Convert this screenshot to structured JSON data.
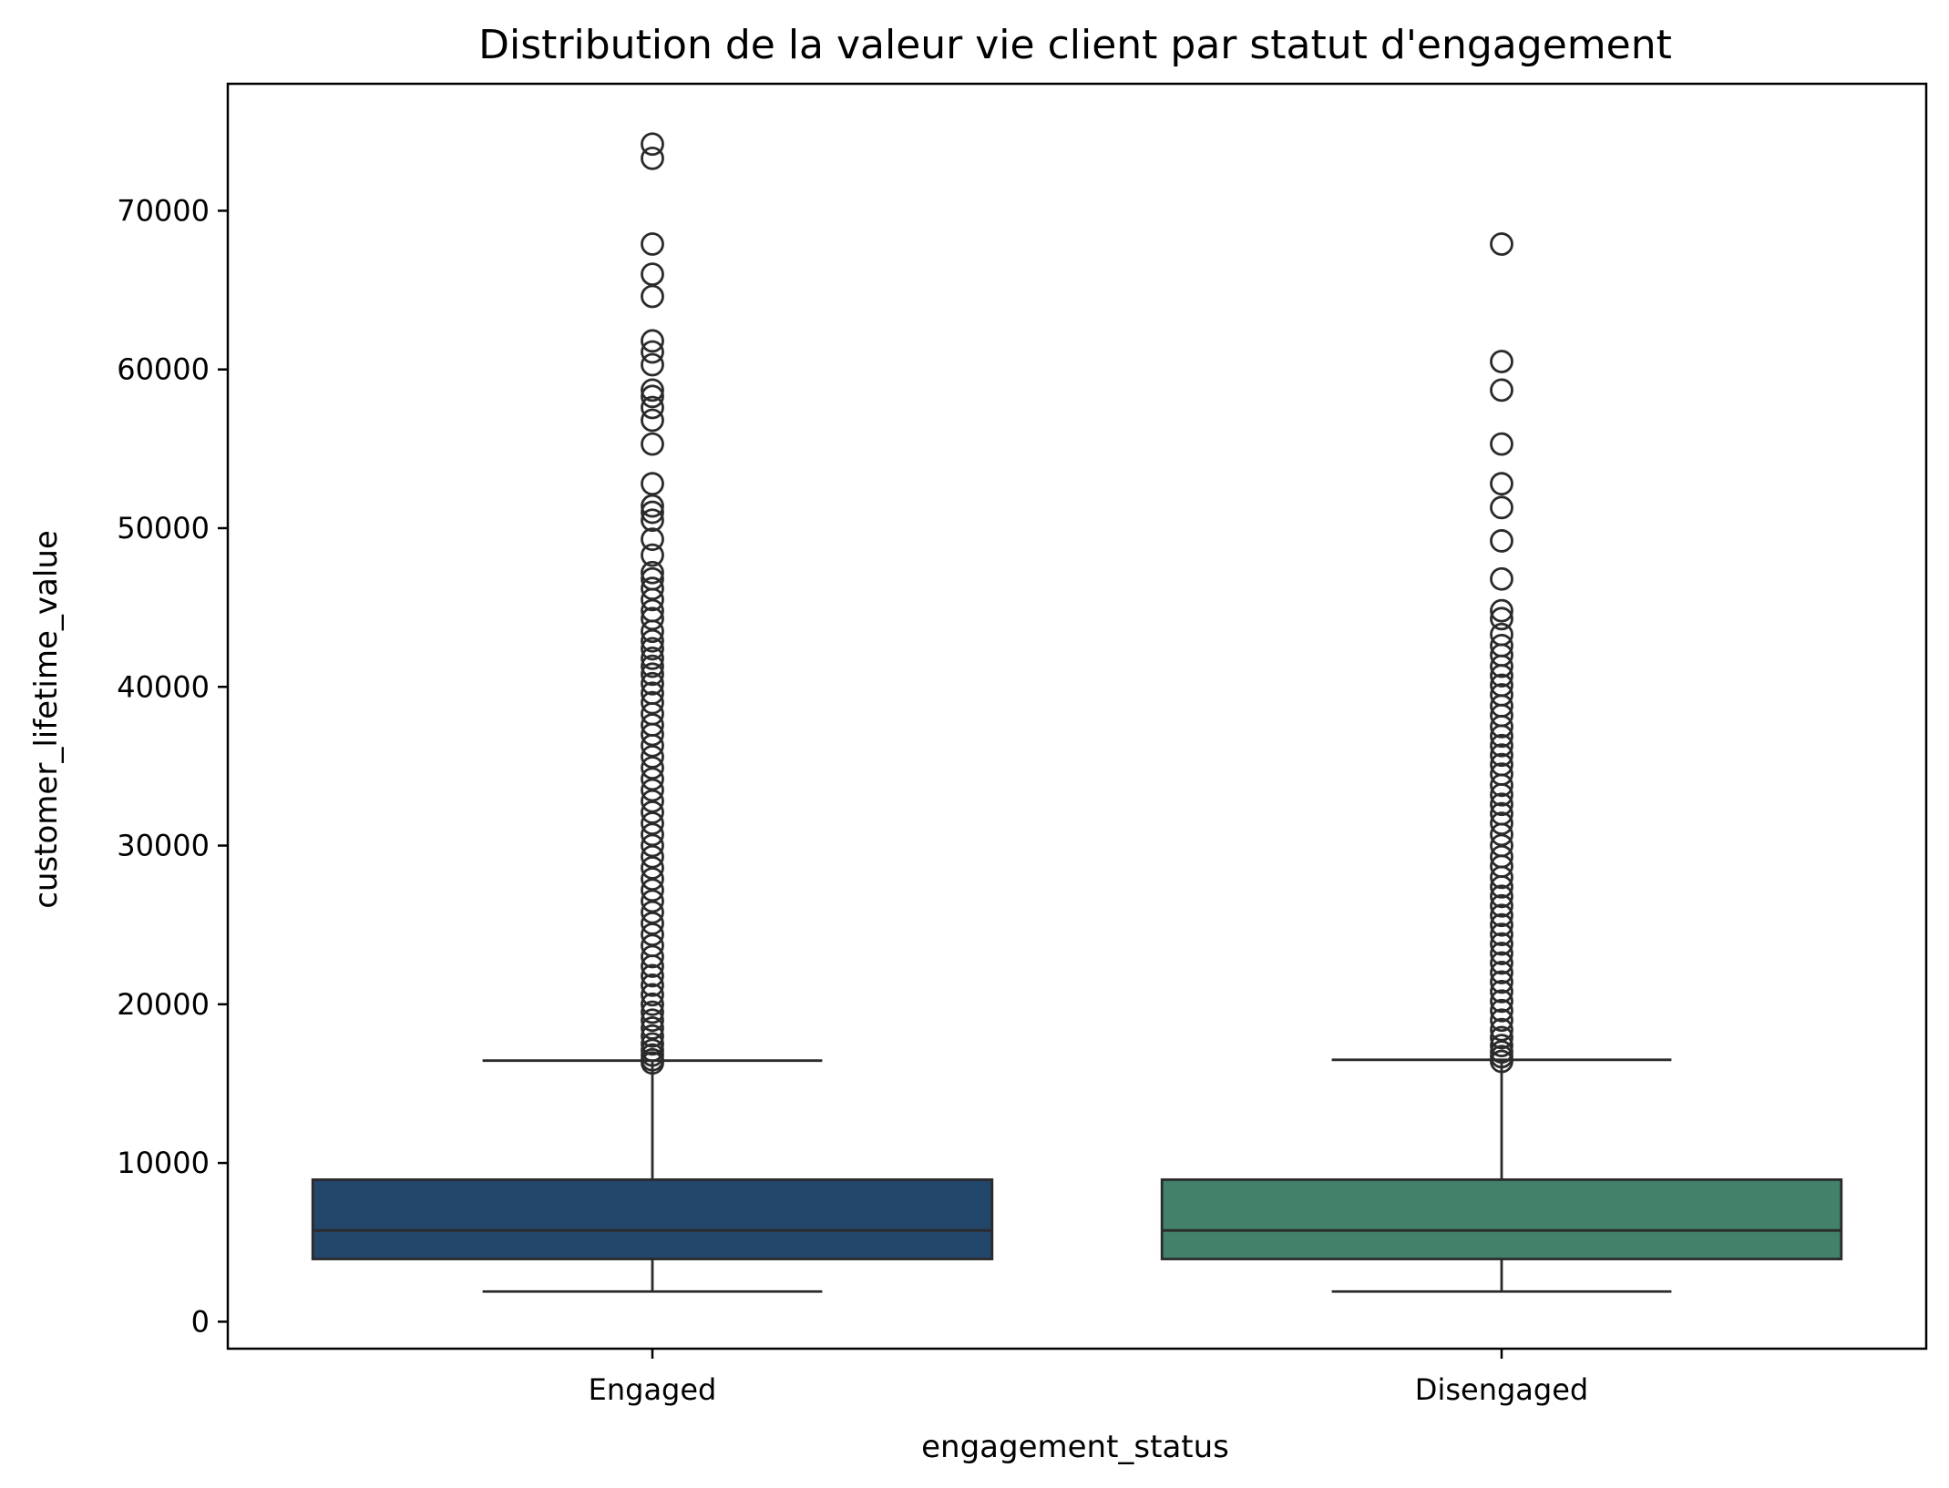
{
  "chart_data": {
    "type": "box",
    "title": "Distribution de la valeur vie client par statut d'engagement",
    "xlabel": "engagement_status",
    "ylabel": "customer_lifetime_value",
    "ylim": [
      -1700,
      78000
    ],
    "yticks": [
      0,
      10000,
      20000,
      30000,
      40000,
      50000,
      60000,
      70000
    ],
    "grid": false,
    "categories": [
      "Engaged",
      "Disengaged"
    ],
    "series": [
      {
        "category": "Engaged",
        "color": "#23466b",
        "whisker_low": 1900,
        "q1": 3950,
        "median": 5750,
        "q3": 8950,
        "whisker_high": 16450,
        "outliers": [
          16300,
          16500,
          16800,
          17100,
          17500,
          18000,
          18500,
          19000,
          19500,
          20000,
          20600,
          21200,
          21800,
          22400,
          23000,
          23700,
          24400,
          25100,
          25800,
          26500,
          27200,
          27900,
          28600,
          29300,
          30000,
          30700,
          31400,
          32100,
          32800,
          33500,
          34200,
          34900,
          35600,
          36300,
          37000,
          37600,
          38300,
          39000,
          39600,
          40200,
          40800,
          41300,
          41800,
          42400,
          42900,
          43500,
          44300,
          44800,
          45500,
          46200,
          46800,
          47200,
          48300,
          49300,
          50500,
          51000,
          51400,
          52800,
          55300,
          56800,
          57600,
          58300,
          58700,
          60300,
          61100,
          61800,
          64600,
          66000,
          67900,
          73300,
          74200
        ]
      },
      {
        "category": "Disengaged",
        "color": "#43816a",
        "whisker_low": 1900,
        "q1": 3950,
        "median": 5750,
        "q3": 8950,
        "whisker_high": 16500,
        "outliers": [
          16400,
          16700,
          17000,
          17400,
          17900,
          18400,
          19000,
          19600,
          20200,
          20800,
          21400,
          22000,
          22600,
          23200,
          23800,
          24400,
          25000,
          25600,
          26200,
          26800,
          27400,
          28000,
          28700,
          29300,
          30000,
          30700,
          31400,
          32000,
          32600,
          33200,
          33800,
          34500,
          35100,
          35700,
          36300,
          36900,
          37500,
          38200,
          38800,
          39500,
          40100,
          40700,
          41300,
          42000,
          42600,
          43300,
          44300,
          44800,
          46800,
          49200,
          51300,
          52800,
          55300,
          58700,
          60500,
          67900
        ]
      }
    ]
  }
}
